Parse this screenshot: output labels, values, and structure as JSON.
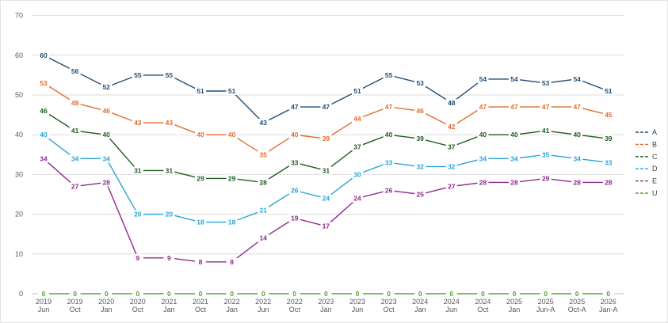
{
  "chart_data": {
    "type": "line",
    "title": "",
    "xlabel": "",
    "ylabel": "",
    "ylim": [
      0,
      70
    ],
    "yticks": [
      0,
      10,
      20,
      30,
      40,
      50,
      60,
      70
    ],
    "grid": true,
    "legend_position": "right",
    "categories": [
      [
        "2019",
        "Jun"
      ],
      [
        "2019",
        "Oct"
      ],
      [
        "2020",
        "Jan"
      ],
      [
        "2020",
        "Oct"
      ],
      [
        "2021",
        "Jan"
      ],
      [
        "2021",
        "Oct"
      ],
      [
        "2022",
        "Jan"
      ],
      [
        "2022",
        "Jun"
      ],
      [
        "2022",
        "Oct"
      ],
      [
        "2023",
        "Jan"
      ],
      [
        "2023",
        "Jun"
      ],
      [
        "2023",
        "Oct"
      ],
      [
        "2024",
        "Jan"
      ],
      [
        "2024",
        "Jun"
      ],
      [
        "2024",
        "Oct"
      ],
      [
        "2025",
        "Jan"
      ],
      [
        "2025",
        "Jun-A"
      ],
      [
        "2025",
        "Oct-A"
      ],
      [
        "2026",
        "Jan-A"
      ]
    ],
    "series": [
      {
        "name": "A",
        "color": "#1f4e79",
        "values": [
          60,
          56,
          52,
          55,
          55,
          51,
          51,
          43,
          47,
          47,
          51,
          55,
          53,
          48,
          54,
          54,
          53,
          54,
          51
        ]
      },
      {
        "name": "B",
        "color": "#e36c2f",
        "values": [
          53,
          48,
          46,
          43,
          43,
          40,
          40,
          35,
          40,
          39,
          44,
          47,
          46,
          42,
          47,
          47,
          47,
          47,
          45
        ]
      },
      {
        "name": "C",
        "color": "#1e5c1e",
        "values": [
          46,
          41,
          40,
          31,
          31,
          29,
          29,
          28,
          33,
          31,
          37,
          40,
          39,
          37,
          40,
          40,
          41,
          40,
          39
        ]
      },
      {
        "name": "D",
        "color": "#2aa3d6",
        "values": [
          40,
          34,
          34,
          20,
          20,
          18,
          18,
          21,
          26,
          24,
          30,
          33,
          32,
          32,
          34,
          34,
          35,
          34,
          33
        ]
      },
      {
        "name": "E",
        "color": "#8e2a8e",
        "values": [
          34,
          27,
          28,
          9,
          9,
          8,
          8,
          14,
          19,
          17,
          24,
          26,
          25,
          27,
          28,
          28,
          29,
          28,
          28
        ]
      },
      {
        "name": "U",
        "color": "#4ea72e",
        "values": [
          0,
          0,
          0,
          0,
          0,
          0,
          0,
          0,
          0,
          0,
          0,
          0,
          0,
          0,
          0,
          0,
          0,
          0,
          0
        ]
      }
    ]
  }
}
